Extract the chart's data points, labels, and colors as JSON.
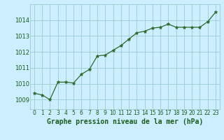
{
  "x": [
    0,
    1,
    2,
    3,
    4,
    5,
    6,
    7,
    8,
    9,
    10,
    11,
    12,
    13,
    14,
    15,
    16,
    17,
    18,
    19,
    20,
    21,
    22,
    23
  ],
  "y": [
    1009.4,
    1009.3,
    1009.0,
    1010.1,
    1010.1,
    1010.05,
    1010.6,
    1010.9,
    1011.75,
    1011.8,
    1012.1,
    1012.4,
    1012.8,
    1013.2,
    1013.3,
    1013.5,
    1013.55,
    1013.75,
    1013.55,
    1013.55,
    1013.55,
    1013.55,
    1013.9,
    1014.5
  ],
  "line_color": "#2d6a2d",
  "marker_color": "#2d6a2d",
  "background_color": "#cceeff",
  "grid_color": "#99cccc",
  "xlabel": "Graphe pression niveau de la mer (hPa)",
  "xlabel_fontsize": 7,
  "xlabel_color": "#1a5c1a",
  "ylabel_ticks": [
    1009,
    1010,
    1011,
    1012,
    1013,
    1014
  ],
  "ylim": [
    1008.4,
    1015.0
  ],
  "xlim": [
    -0.5,
    23.5
  ],
  "xtick_labels": [
    "0",
    "1",
    "2",
    "3",
    "4",
    "5",
    "6",
    "7",
    "8",
    "9",
    "10",
    "11",
    "12",
    "13",
    "14",
    "15",
    "16",
    "17",
    "18",
    "19",
    "20",
    "21",
    "22",
    "23"
  ],
  "ytick_fontsize": 6,
  "xtick_fontsize": 5.5,
  "tick_color": "#1a5c1a"
}
